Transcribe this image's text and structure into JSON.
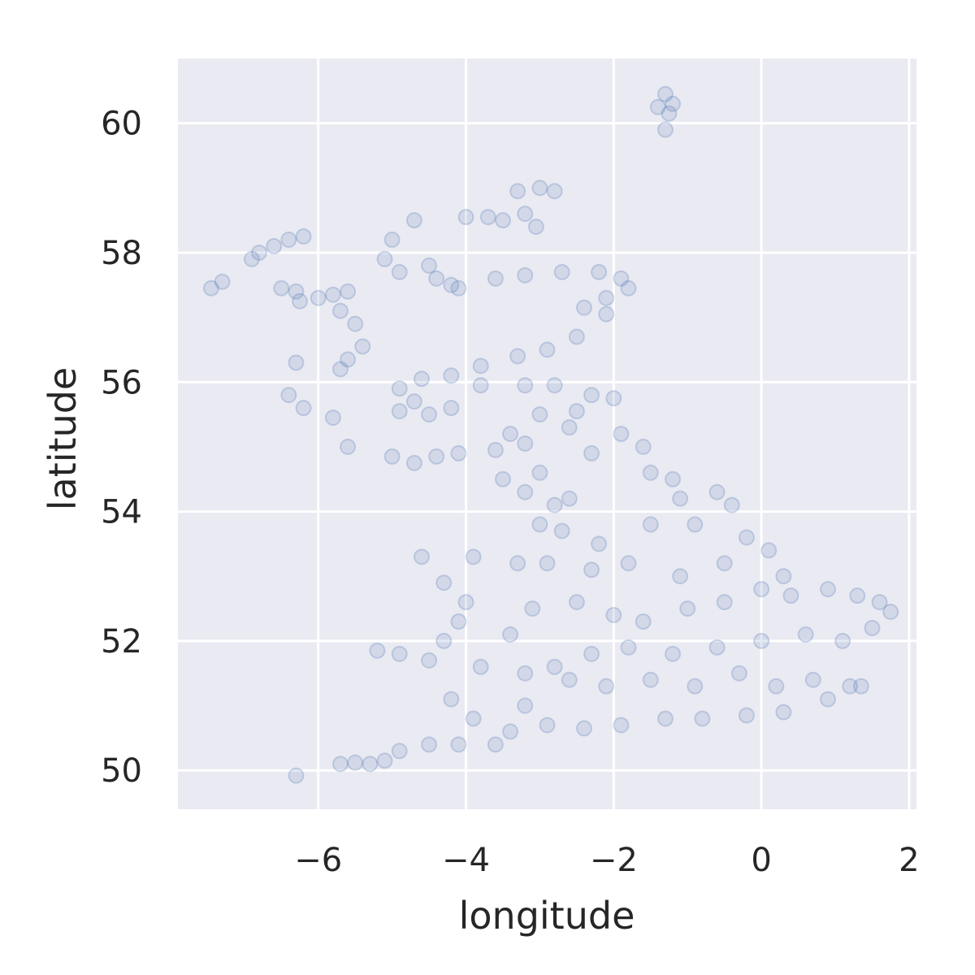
{
  "chart_data": {
    "type": "scatter",
    "title": "",
    "xlabel": "longitude",
    "ylabel": "latitude",
    "xlim": [
      -7.9,
      2.1
    ],
    "ylim": [
      49.4,
      61.0
    ],
    "x_ticks": [
      -6,
      -4,
      -2,
      0,
      2
    ],
    "y_ticks": [
      50,
      52,
      54,
      56,
      58,
      60
    ],
    "x_tick_labels": [
      "−6",
      "−4",
      "−2",
      "0",
      "2"
    ],
    "y_tick_labels": [
      "50",
      "52",
      "54",
      "56",
      "58",
      "60"
    ],
    "grid": true,
    "legend": false,
    "colors": {
      "background": "#eaeaf2",
      "grid": "#ffffff",
      "marker": "#4c72b0",
      "text": "#262626"
    },
    "marker_alpha": 0.15,
    "series": [
      {
        "points": [
          [
            -1.3,
            60.45
          ],
          [
            -1.2,
            60.3
          ],
          [
            -1.25,
            60.15
          ],
          [
            -1.3,
            59.9
          ],
          [
            -1.4,
            60.25
          ],
          [
            -3.0,
            59.0
          ],
          [
            -2.8,
            58.95
          ],
          [
            -3.3,
            58.95
          ],
          [
            -3.2,
            58.6
          ],
          [
            -3.5,
            58.5
          ],
          [
            -3.05,
            58.4
          ],
          [
            -3.7,
            58.55
          ],
          [
            -4.0,
            58.55
          ],
          [
            -4.7,
            58.5
          ],
          [
            -6.2,
            58.25
          ],
          [
            -6.4,
            58.2
          ],
          [
            -6.6,
            58.1
          ],
          [
            -6.8,
            58.0
          ],
          [
            -6.9,
            57.9
          ],
          [
            -7.3,
            57.55
          ],
          [
            -7.45,
            57.45
          ],
          [
            -6.3,
            57.4
          ],
          [
            -6.5,
            57.45
          ],
          [
            -6.25,
            57.25
          ],
          [
            -6.0,
            57.3
          ],
          [
            -5.8,
            57.35
          ],
          [
            -5.6,
            57.4
          ],
          [
            -5.7,
            57.1
          ],
          [
            -5.5,
            56.9
          ],
          [
            -5.4,
            56.55
          ],
          [
            -5.6,
            56.35
          ],
          [
            -5.7,
            56.2
          ],
          [
            -6.3,
            56.3
          ],
          [
            -6.4,
            55.8
          ],
          [
            -6.2,
            55.6
          ],
          [
            -5.8,
            55.45
          ],
          [
            -5.6,
            55.0
          ],
          [
            -5.0,
            54.85
          ],
          [
            -4.7,
            54.75
          ],
          [
            -4.4,
            54.85
          ],
          [
            -4.1,
            54.9
          ],
          [
            -3.6,
            54.95
          ],
          [
            -3.2,
            55.05
          ],
          [
            -5.0,
            58.2
          ],
          [
            -5.1,
            57.9
          ],
          [
            -4.9,
            57.7
          ],
          [
            -4.5,
            57.8
          ],
          [
            -4.2,
            57.5
          ],
          [
            -4.4,
            57.6
          ],
          [
            -4.1,
            57.45
          ],
          [
            -3.6,
            57.6
          ],
          [
            -3.2,
            57.65
          ],
          [
            -2.7,
            57.7
          ],
          [
            -2.2,
            57.7
          ],
          [
            -1.9,
            57.6
          ],
          [
            -1.8,
            57.45
          ],
          [
            -2.1,
            57.3
          ],
          [
            -2.4,
            57.15
          ],
          [
            -2.1,
            57.05
          ],
          [
            -2.5,
            56.7
          ],
          [
            -2.9,
            56.5
          ],
          [
            -3.3,
            56.4
          ],
          [
            -3.8,
            56.25
          ],
          [
            -4.2,
            56.1
          ],
          [
            -4.6,
            56.05
          ],
          [
            -4.9,
            55.9
          ],
          [
            -4.7,
            55.7
          ],
          [
            -4.5,
            55.5
          ],
          [
            -4.2,
            55.6
          ],
          [
            -4.9,
            55.55
          ],
          [
            -3.8,
            55.95
          ],
          [
            -3.2,
            55.95
          ],
          [
            -2.8,
            55.95
          ],
          [
            -2.3,
            55.8
          ],
          [
            -2.0,
            55.75
          ],
          [
            -2.5,
            55.55
          ],
          [
            -3.0,
            55.5
          ],
          [
            -3.4,
            55.2
          ],
          [
            -2.6,
            55.3
          ],
          [
            -3.5,
            54.5
          ],
          [
            -3.2,
            54.3
          ],
          [
            -3.0,
            54.6
          ],
          [
            -2.8,
            54.1
          ],
          [
            -2.6,
            54.2
          ],
          [
            -2.3,
            54.9
          ],
          [
            -1.9,
            55.2
          ],
          [
            -1.6,
            55.0
          ],
          [
            -1.5,
            54.6
          ],
          [
            -1.2,
            54.5
          ],
          [
            -1.1,
            54.2
          ],
          [
            -0.6,
            54.3
          ],
          [
            -0.4,
            54.1
          ],
          [
            -0.9,
            53.8
          ],
          [
            -1.5,
            53.8
          ],
          [
            -2.2,
            53.5
          ],
          [
            -2.7,
            53.7
          ],
          [
            -3.0,
            53.8
          ],
          [
            -0.2,
            53.6
          ],
          [
            0.1,
            53.4
          ],
          [
            0.3,
            53.0
          ],
          [
            -0.5,
            53.2
          ],
          [
            -1.1,
            53.0
          ],
          [
            -1.8,
            53.2
          ],
          [
            -2.3,
            53.1
          ],
          [
            -2.9,
            53.2
          ],
          [
            -3.3,
            53.2
          ],
          [
            -3.9,
            53.3
          ],
          [
            -4.6,
            53.3
          ],
          [
            -4.3,
            52.9
          ],
          [
            -4.0,
            52.6
          ],
          [
            -4.1,
            52.3
          ],
          [
            -3.4,
            52.1
          ],
          [
            -3.1,
            52.5
          ],
          [
            -4.3,
            52.0
          ],
          [
            -4.9,
            51.8
          ],
          [
            -5.2,
            51.85
          ],
          [
            -4.5,
            51.7
          ],
          [
            -3.8,
            51.6
          ],
          [
            -3.2,
            51.5
          ],
          [
            -2.8,
            51.6
          ],
          [
            -2.5,
            52.6
          ],
          [
            -2.0,
            52.4
          ],
          [
            -1.6,
            52.3
          ],
          [
            -1.0,
            52.5
          ],
          [
            -0.5,
            52.6
          ],
          [
            0.0,
            52.8
          ],
          [
            0.4,
            52.7
          ],
          [
            0.9,
            52.8
          ],
          [
            1.3,
            52.7
          ],
          [
            1.6,
            52.6
          ],
          [
            1.75,
            52.45
          ],
          [
            1.5,
            52.2
          ],
          [
            1.1,
            52.0
          ],
          [
            0.6,
            52.1
          ],
          [
            0.0,
            52.0
          ],
          [
            -0.6,
            51.9
          ],
          [
            -1.2,
            51.8
          ],
          [
            -1.8,
            51.9
          ],
          [
            -2.3,
            51.8
          ],
          [
            -2.6,
            51.4
          ],
          [
            -2.1,
            51.3
          ],
          [
            -1.5,
            51.4
          ],
          [
            -0.9,
            51.3
          ],
          [
            -0.3,
            51.5
          ],
          [
            0.2,
            51.3
          ],
          [
            0.7,
            51.4
          ],
          [
            1.2,
            51.3
          ],
          [
            1.35,
            51.3
          ],
          [
            0.9,
            51.1
          ],
          [
            0.3,
            50.9
          ],
          [
            -0.2,
            50.85
          ],
          [
            -0.8,
            50.8
          ],
          [
            -1.3,
            50.8
          ],
          [
            -1.9,
            50.7
          ],
          [
            -2.4,
            50.65
          ],
          [
            -2.9,
            50.7
          ],
          [
            -3.4,
            50.6
          ],
          [
            -3.6,
            50.4
          ],
          [
            -4.1,
            50.4
          ],
          [
            -4.5,
            50.4
          ],
          [
            -4.9,
            50.3
          ],
          [
            -5.1,
            50.15
          ],
          [
            -5.3,
            50.1
          ],
          [
            -5.5,
            50.12
          ],
          [
            -5.7,
            50.1
          ],
          [
            -3.9,
            50.8
          ],
          [
            -3.2,
            51.0
          ],
          [
            -4.2,
            51.1
          ],
          [
            -6.3,
            49.92
          ]
        ]
      }
    ]
  }
}
